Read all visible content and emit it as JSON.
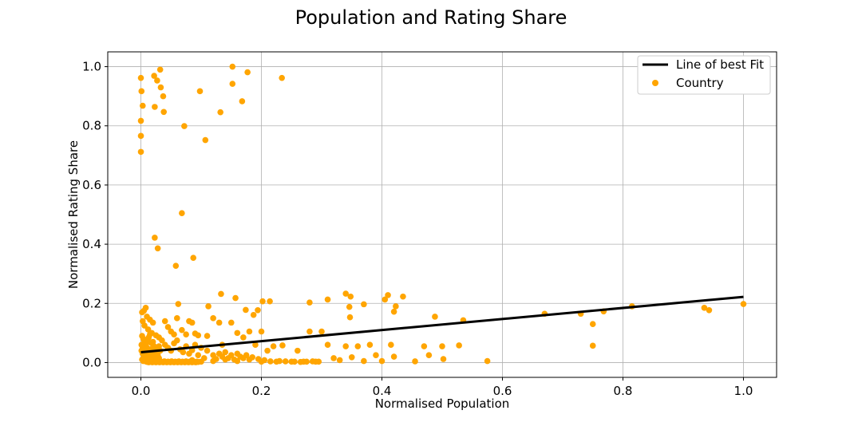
{
  "chart_data": {
    "type": "scatter",
    "title": "Population and Rating Share",
    "xlabel": "Normalised Population",
    "ylabel": "Normalised Rating Share",
    "xlim": [
      -0.055,
      1.055
    ],
    "ylim": [
      -0.05,
      1.05
    ],
    "xticks": [
      0.0,
      0.2,
      0.4,
      0.6,
      0.8,
      1.0
    ],
    "xtick_labels": [
      "0.0",
      "0.2",
      "0.4",
      "0.6",
      "0.8",
      "1.0"
    ],
    "yticks": [
      0.0,
      0.2,
      0.4,
      0.6,
      0.8,
      1.0
    ],
    "ytick_labels": [
      "0.0",
      "0.2",
      "0.4",
      "0.6",
      "0.8",
      "1.0"
    ],
    "grid": true,
    "legend_position": "top-right",
    "legend": {
      "line_label": "Line of best Fit",
      "scatter_label": "Country"
    },
    "colors": {
      "points": "#ffa500",
      "line": "#000000"
    },
    "line_of_best_fit": {
      "x": [
        0.0,
        1.0
      ],
      "y": [
        0.035,
        0.222
      ]
    },
    "series": [
      {
        "name": "Country",
        "points": [
          [
            0.0,
            0.962
          ],
          [
            0.001,
            0.917
          ],
          [
            0.003,
            0.868
          ],
          [
            0.0,
            0.817
          ],
          [
            0.0,
            0.766
          ],
          [
            0.0,
            0.712
          ],
          [
            0.022,
            0.969
          ],
          [
            0.032,
            0.99
          ],
          [
            0.027,
            0.953
          ],
          [
            0.033,
            0.93
          ],
          [
            0.037,
            0.9
          ],
          [
            0.023,
            0.864
          ],
          [
            0.038,
            0.847
          ],
          [
            0.152,
            1.0
          ],
          [
            0.177,
            0.981
          ],
          [
            0.152,
            0.942
          ],
          [
            0.098,
            0.917
          ],
          [
            0.234,
            0.962
          ],
          [
            0.168,
            0.883
          ],
          [
            0.132,
            0.846
          ],
          [
            0.072,
            0.799
          ],
          [
            0.107,
            0.752
          ],
          [
            0.068,
            0.505
          ],
          [
            0.023,
            0.422
          ],
          [
            0.028,
            0.386
          ],
          [
            0.087,
            0.354
          ],
          [
            0.058,
            0.327
          ],
          [
            0.133,
            0.232
          ],
          [
            0.157,
            0.218
          ],
          [
            0.202,
            0.207
          ],
          [
            0.214,
            0.207
          ],
          [
            0.112,
            0.19
          ],
          [
            0.174,
            0.178
          ],
          [
            0.187,
            0.161
          ],
          [
            0.194,
            0.177
          ],
          [
            0.2,
            0.105
          ],
          [
            0.18,
            0.105
          ],
          [
            0.16,
            0.1
          ],
          [
            0.12,
            0.15
          ],
          [
            0.13,
            0.135
          ],
          [
            0.15,
            0.135
          ],
          [
            0.11,
            0.09
          ],
          [
            0.135,
            0.06
          ],
          [
            0.17,
            0.085
          ],
          [
            0.19,
            0.06
          ],
          [
            0.21,
            0.04
          ],
          [
            0.22,
            0.055
          ],
          [
            0.235,
            0.058
          ],
          [
            0.26,
            0.04
          ],
          [
            0.28,
            0.105
          ],
          [
            0.3,
            0.105
          ],
          [
            0.28,
            0.203
          ],
          [
            0.31,
            0.213
          ],
          [
            0.34,
            0.233
          ],
          [
            0.348,
            0.223
          ],
          [
            0.346,
            0.188
          ],
          [
            0.347,
            0.153
          ],
          [
            0.37,
            0.197
          ],
          [
            0.405,
            0.213
          ],
          [
            0.41,
            0.228
          ],
          [
            0.435,
            0.223
          ],
          [
            0.423,
            0.19
          ],
          [
            0.42,
            0.172
          ],
          [
            0.488,
            0.155
          ],
          [
            0.535,
            0.143
          ],
          [
            0.67,
            0.165
          ],
          [
            0.73,
            0.165
          ],
          [
            0.75,
            0.13
          ],
          [
            0.768,
            0.173
          ],
          [
            0.815,
            0.19
          ],
          [
            0.935,
            0.185
          ],
          [
            0.943,
            0.177
          ],
          [
            1.0,
            0.198
          ],
          [
            0.75,
            0.057
          ],
          [
            0.31,
            0.06
          ],
          [
            0.34,
            0.055
          ],
          [
            0.36,
            0.055
          ],
          [
            0.38,
            0.06
          ],
          [
            0.39,
            0.025
          ],
          [
            0.415,
            0.06
          ],
          [
            0.42,
            0.02
          ],
          [
            0.47,
            0.055
          ],
          [
            0.478,
            0.025
          ],
          [
            0.5,
            0.055
          ],
          [
            0.502,
            0.012
          ],
          [
            0.528,
            0.058
          ],
          [
            0.575,
            0.005
          ],
          [
            0.455,
            0.004
          ],
          [
            0.4,
            0.005
          ],
          [
            0.37,
            0.005
          ],
          [
            0.35,
            0.018
          ],
          [
            0.33,
            0.008
          ],
          [
            0.32,
            0.015
          ],
          [
            0.29,
            0.003
          ],
          [
            0.27,
            0.003
          ],
          [
            0.25,
            0.003
          ],
          [
            0.23,
            0.005
          ],
          [
            0.2,
            0.003
          ],
          [
            0.18,
            0.01
          ],
          [
            0.16,
            0.005
          ],
          [
            0.14,
            0.01
          ],
          [
            0.12,
            0.005
          ],
          [
            0.1,
            0.003
          ],
          [
            0.085,
            0.008
          ],
          [
            0.005,
            0.175
          ],
          [
            0.008,
            0.185
          ],
          [
            0.002,
            0.17
          ],
          [
            0.01,
            0.155
          ],
          [
            0.015,
            0.145
          ],
          [
            0.02,
            0.135
          ],
          [
            0.003,
            0.14
          ],
          [
            0.006,
            0.125
          ],
          [
            0.012,
            0.112
          ],
          [
            0.018,
            0.1
          ],
          [
            0.025,
            0.092
          ],
          [
            0.03,
            0.085
          ],
          [
            0.04,
            0.14
          ],
          [
            0.045,
            0.12
          ],
          [
            0.05,
            0.105
          ],
          [
            0.055,
            0.095
          ],
          [
            0.06,
            0.15
          ],
          [
            0.062,
            0.198
          ],
          [
            0.068,
            0.11
          ],
          [
            0.075,
            0.095
          ],
          [
            0.08,
            0.14
          ],
          [
            0.085,
            0.135
          ],
          [
            0.09,
            0.098
          ],
          [
            0.095,
            0.092
          ],
          [
            0.035,
            0.075
          ],
          [
            0.04,
            0.06
          ],
          [
            0.045,
            0.05
          ],
          [
            0.05,
            0.04
          ],
          [
            0.055,
            0.065
          ],
          [
            0.06,
            0.075
          ],
          [
            0.065,
            0.045
          ],
          [
            0.07,
            0.035
          ],
          [
            0.075,
            0.055
          ],
          [
            0.08,
            0.03
          ],
          [
            0.085,
            0.042
          ],
          [
            0.09,
            0.06
          ],
          [
            0.095,
            0.025
          ],
          [
            0.1,
            0.05
          ],
          [
            0.105,
            0.015
          ],
          [
            0.11,
            0.04
          ],
          [
            0.002,
            0.09
          ],
          [
            0.004,
            0.08
          ],
          [
            0.006,
            0.07
          ],
          [
            0.008,
            0.06
          ],
          [
            0.01,
            0.05
          ],
          [
            0.012,
            0.04
          ],
          [
            0.014,
            0.03
          ],
          [
            0.016,
            0.02
          ],
          [
            0.018,
            0.01
          ],
          [
            0.02,
            0.07
          ],
          [
            0.022,
            0.055
          ],
          [
            0.024,
            0.045
          ],
          [
            0.026,
            0.035
          ],
          [
            0.028,
            0.025
          ],
          [
            0.03,
            0.015
          ],
          [
            0.032,
            0.005
          ],
          [
            0.001,
            0.04
          ],
          [
            0.003,
            0.03
          ],
          [
            0.005,
            0.02
          ],
          [
            0.007,
            0.01
          ],
          [
            0.009,
            0.003
          ],
          [
            0.011,
            0.002
          ],
          [
            0.013,
            0.001
          ],
          [
            0.015,
            0.003
          ],
          [
            0.017,
            0.002
          ],
          [
            0.019,
            0.001
          ],
          [
            0.021,
            0.003
          ],
          [
            0.023,
            0.002
          ],
          [
            0.025,
            0.001
          ],
          [
            0.027,
            0.004
          ],
          [
            0.029,
            0.002
          ],
          [
            0.031,
            0.001
          ],
          [
            0.033,
            0.003
          ],
          [
            0.035,
            0.002
          ],
          [
            0.037,
            0.001
          ],
          [
            0.039,
            0.004
          ],
          [
            0.041,
            0.002
          ],
          [
            0.043,
            0.001
          ],
          [
            0.045,
            0.003
          ],
          [
            0.047,
            0.002
          ],
          [
            0.049,
            0.001
          ],
          [
            0.051,
            0.004
          ],
          [
            0.053,
            0.002
          ],
          [
            0.055,
            0.001
          ],
          [
            0.057,
            0.003
          ],
          [
            0.059,
            0.002
          ],
          [
            0.061,
            0.001
          ],
          [
            0.063,
            0.004
          ],
          [
            0.065,
            0.002
          ],
          [
            0.067,
            0.001
          ],
          [
            0.069,
            0.003
          ],
          [
            0.071,
            0.002
          ],
          [
            0.073,
            0.001
          ],
          [
            0.075,
            0.004
          ],
          [
            0.077,
            0.002
          ],
          [
            0.079,
            0.001
          ],
          [
            0.081,
            0.003
          ],
          [
            0.083,
            0.002
          ],
          [
            0.085,
            0.001
          ],
          [
            0.087,
            0.004
          ],
          [
            0.089,
            0.002
          ],
          [
            0.091,
            0.001
          ],
          [
            0.093,
            0.003
          ],
          [
            0.095,
            0.002
          ],
          [
            0.002,
            0.01
          ],
          [
            0.004,
            0.005
          ],
          [
            0.006,
            0.015
          ],
          [
            0.008,
            0.025
          ],
          [
            0.01,
            0.035
          ],
          [
            0.012,
            0.015
          ],
          [
            0.014,
            0.008
          ],
          [
            0.016,
            0.045
          ],
          [
            0.018,
            0.065
          ],
          [
            0.02,
            0.03
          ],
          [
            0.022,
            0.02
          ],
          [
            0.024,
            0.012
          ],
          [
            0.026,
            0.008
          ],
          [
            0.028,
            0.045
          ],
          [
            0.03,
            0.055
          ],
          [
            0.032,
            0.04
          ],
          [
            0.001,
            0.06
          ],
          [
            0.003,
            0.05
          ],
          [
            0.005,
            0.045
          ],
          [
            0.007,
            0.055
          ],
          [
            0.009,
            0.065
          ],
          [
            0.011,
            0.075
          ],
          [
            0.013,
            0.085
          ],
          [
            0.015,
            0.095
          ],
          [
            0.12,
            0.025
          ],
          [
            0.125,
            0.012
          ],
          [
            0.13,
            0.03
          ],
          [
            0.135,
            0.02
          ],
          [
            0.14,
            0.035
          ],
          [
            0.145,
            0.015
          ],
          [
            0.15,
            0.025
          ],
          [
            0.155,
            0.01
          ],
          [
            0.16,
            0.03
          ],
          [
            0.165,
            0.02
          ],
          [
            0.17,
            0.015
          ],
          [
            0.175,
            0.025
          ],
          [
            0.185,
            0.018
          ],
          [
            0.195,
            0.012
          ],
          [
            0.205,
            0.008
          ],
          [
            0.215,
            0.004
          ],
          [
            0.225,
            0.003
          ],
          [
            0.24,
            0.004
          ],
          [
            0.255,
            0.003
          ],
          [
            0.265,
            0.002
          ],
          [
            0.275,
            0.003
          ],
          [
            0.285,
            0.004
          ],
          [
            0.295,
            0.003
          ]
        ]
      }
    ]
  }
}
